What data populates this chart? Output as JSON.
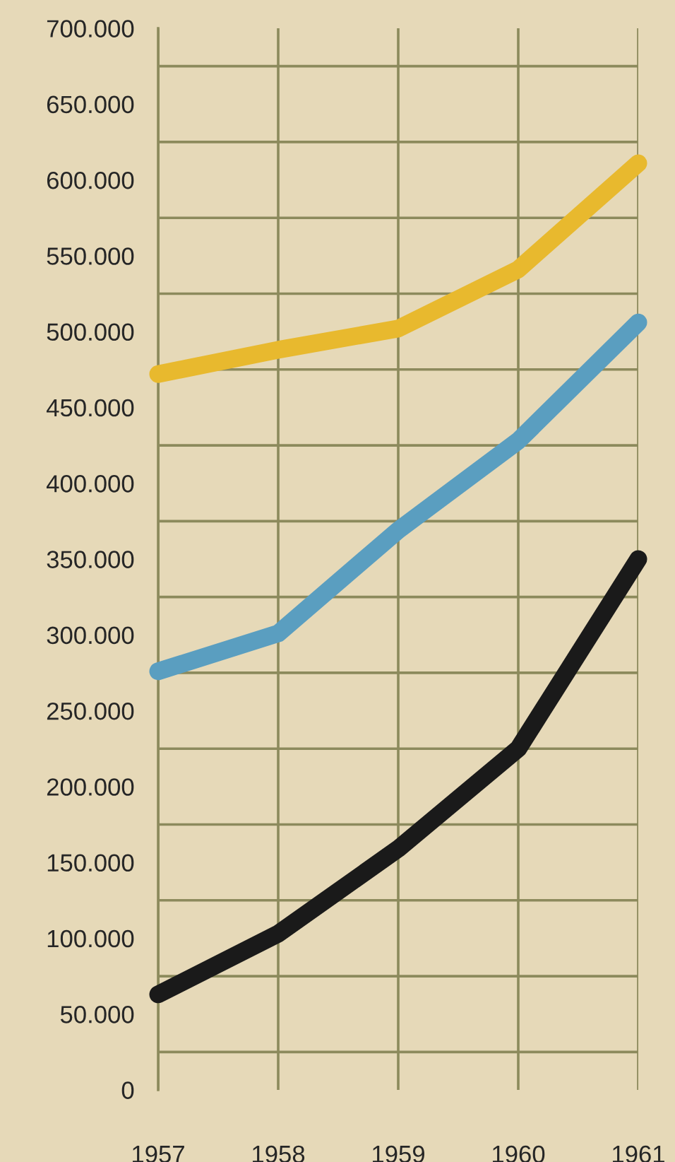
{
  "chart_data": {
    "type": "line",
    "x": [
      1957,
      1958,
      1959,
      1960,
      1961
    ],
    "series": [
      {
        "color": "#e8b92e",
        "values": [
          472000,
          488000,
          502000,
          541000,
          611000
        ]
      },
      {
        "color": "#5a9ec0",
        "values": [
          276000,
          301000,
          369000,
          428000,
          506000
        ]
      },
      {
        "color": "#1a1a1a",
        "values": [
          63000,
          103000,
          159000,
          225000,
          350000
        ]
      }
    ],
    "xlim": [
      1957,
      1961
    ],
    "xticks": [
      1957,
      1958,
      1959,
      1960,
      1961
    ],
    "ylim": [
      0,
      700000
    ],
    "yticks": [
      {
        "value": 0,
        "label": "0"
      },
      {
        "value": 25000,
        "label": null
      },
      {
        "value": 50000,
        "label": "50.000"
      },
      {
        "value": 75000,
        "label": null
      },
      {
        "value": 100000,
        "label": "100.000"
      },
      {
        "value": 125000,
        "label": null
      },
      {
        "value": 150000,
        "label": "150.000"
      },
      {
        "value": 175000,
        "label": null
      },
      {
        "value": 200000,
        "label": "200.000"
      },
      {
        "value": 225000,
        "label": null
      },
      {
        "value": 250000,
        "label": "250.000"
      },
      {
        "value": 275000,
        "label": null
      },
      {
        "value": 300000,
        "label": "300.000"
      },
      {
        "value": 325000,
        "label": null
      },
      {
        "value": 350000,
        "label": "350.000"
      },
      {
        "value": 375000,
        "label": null
      },
      {
        "value": 400000,
        "label": "400.000"
      },
      {
        "value": 425000,
        "label": null
      },
      {
        "value": 450000,
        "label": "450.000"
      },
      {
        "value": 475000,
        "label": null
      },
      {
        "value": 500000,
        "label": "500.000"
      },
      {
        "value": 525000,
        "label": null
      },
      {
        "value": 550000,
        "label": "550.000"
      },
      {
        "value": 575000,
        "label": null
      },
      {
        "value": 600000,
        "label": "600.000"
      },
      {
        "value": 625000,
        "label": null
      },
      {
        "value": 650000,
        "label": "650.000"
      },
      {
        "value": 675000,
        "label": null
      },
      {
        "value": 700000,
        "label": "700.000"
      }
    ],
    "grid": true,
    "line_style": "solid",
    "marker": "none"
  }
}
